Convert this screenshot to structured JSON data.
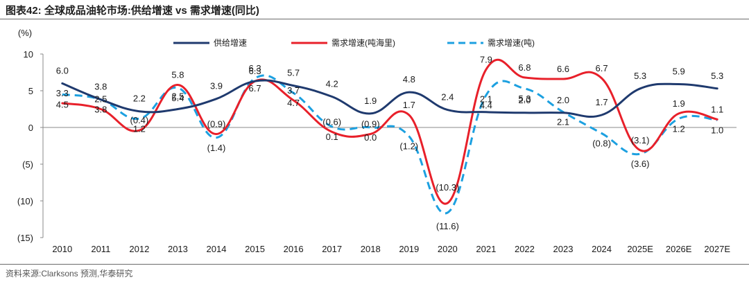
{
  "title": "图表42:  全球成品油轮市场:供给增速 vs 需求增速(同比)",
  "source": "资料来源:Clarksons 预测,华泰研究",
  "chart_data": {
    "type": "line",
    "ylabel": "(%)",
    "ylim": [
      -15,
      10
    ],
    "yticks": [
      10,
      5,
      0,
      -5,
      -10,
      -15
    ],
    "ytick_labels": [
      "10",
      "5",
      "0",
      "(5)",
      "(10)",
      "(15)"
    ],
    "categories": [
      "2010",
      "2011",
      "2012",
      "2013",
      "2014",
      "2015",
      "2016",
      "2017",
      "2018",
      "2019",
      "2020",
      "2021",
      "2022",
      "2023",
      "2024",
      "2025E",
      "2026E",
      "2027E"
    ],
    "series": [
      {
        "name": "供给增速",
        "color": "#1f3a6e",
        "dash": "solid",
        "values": [
          6.0,
          3.8,
          2.2,
          2.5,
          3.9,
          6.3,
          5.7,
          4.2,
          1.9,
          4.8,
          2.4,
          2.1,
          2.0,
          2.0,
          1.7,
          5.3,
          5.9,
          5.3
        ],
        "labels": [
          "6.0",
          "3.8",
          "2.2",
          "2.5",
          "3.9",
          "6.3",
          "5.7",
          "4.2",
          "1.9",
          "4.8",
          "2.4",
          "2.1",
          "2.0",
          "2.0",
          "1.7",
          "5.3",
          "5.9",
          "5.3"
        ]
      },
      {
        "name": "需求增速(吨海里)",
        "color": "#e8202a",
        "dash": "solid",
        "values": [
          3.3,
          2.5,
          -0.4,
          5.8,
          -0.9,
          6.3,
          3.7,
          -0.6,
          -0.9,
          1.7,
          -10.3,
          7.9,
          6.8,
          6.6,
          6.7,
          -3.1,
          1.9,
          1.1
        ],
        "labels": [
          "3.3",
          "2.5",
          "(0.4)",
          "5.8",
          "(0.9)",
          "6.3",
          "3.7",
          "(0.6)",
          "(0.9)",
          "1.7",
          "(10.3)",
          "7.9",
          "6.8",
          "6.6",
          "6.7",
          "(3.1)",
          "1.9",
          "1.1"
        ]
      },
      {
        "name": "需求增速(吨)",
        "color": "#1ca0e0",
        "dash": "dashed",
        "values": [
          4.5,
          3.8,
          1.2,
          5.4,
          -1.4,
          6.7,
          4.7,
          0.1,
          0.0,
          -1.2,
          -11.6,
          4.4,
          5.3,
          2.1,
          -0.8,
          -3.6,
          1.2,
          1.0
        ],
        "labels": [
          "4.5",
          "3.8",
          "1.2",
          "5.4",
          "(1.4)",
          "6.7",
          "4.7",
          "0.1",
          "0.0",
          "(1.2)",
          "(11.6)",
          "4.4",
          "5.3",
          "2.1",
          "(0.8)",
          "(3.6)",
          "1.2",
          "1.0"
        ]
      }
    ]
  }
}
